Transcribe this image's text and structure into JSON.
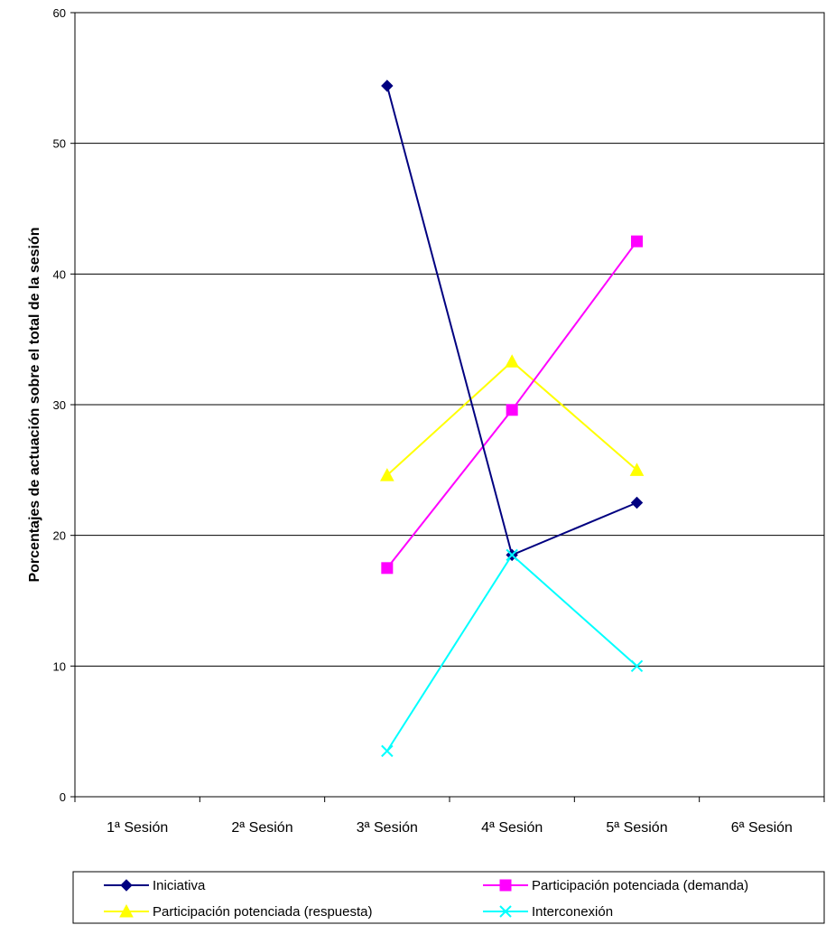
{
  "chart_data": {
    "type": "line",
    "title": "",
    "xlabel": "",
    "ylabel": "Porcentajes de actuación sobre el total de la sesión",
    "categories": [
      "1ª Sesión",
      "2ª Sesión",
      "3ª Sesión",
      "4ª Sesión",
      "5ª Sesión",
      "6ª Sesión"
    ],
    "ylim": [
      0,
      60
    ],
    "yticks": [
      0,
      10,
      20,
      30,
      40,
      50,
      60
    ],
    "grid": true,
    "legend_position": "bottom",
    "series": [
      {
        "name": "Iniciativa",
        "color": "#000080",
        "marker": "diamond",
        "values": [
          null,
          null,
          54.4,
          18.5,
          22.5,
          null
        ]
      },
      {
        "name": "Participación potenciada (demanda)",
        "color": "#ff00ff",
        "marker": "square",
        "values": [
          null,
          null,
          17.5,
          29.6,
          42.5,
          null
        ]
      },
      {
        "name": "Participación potenciada (respuesta)",
        "color": "#ffff00",
        "marker": "triangle",
        "values": [
          null,
          null,
          24.6,
          33.3,
          25.0,
          null
        ]
      },
      {
        "name": "Interconexión",
        "color": "#00ffff",
        "marker": "x",
        "values": [
          null,
          null,
          3.5,
          18.5,
          10.0,
          null
        ]
      }
    ]
  }
}
